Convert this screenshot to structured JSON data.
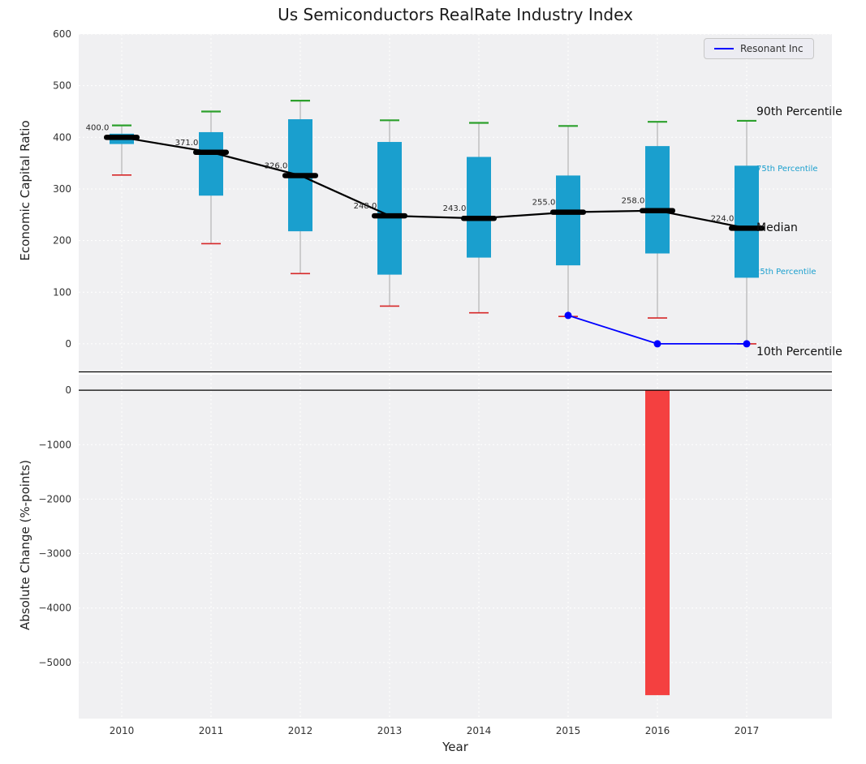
{
  "title": "Us Semiconductors RealRate Industry Index",
  "xlabel": "Year",
  "legend": {
    "label": "Resonant Inc"
  },
  "annotations": {
    "p90": "90th Percentile",
    "p75": "75th Percentile",
    "median": "Median",
    "p25": "25th Percentile",
    "p10": "10th Percentile"
  },
  "colors": {
    "axes_bg": "#f0f0f2",
    "grid": "#ffffff",
    "box": "#1a9fce",
    "whisker": "#a8a8a8",
    "p90_cap": "#2ca02c",
    "p10_cap": "#d62728",
    "median": "#000000",
    "resonant": "#0000ff",
    "neg_bar": "#f44040"
  },
  "chart_data": [
    {
      "type": "boxplot",
      "title": "Us Semiconductors RealRate Industry Index",
      "xlabel": "Year",
      "ylabel": "Economic Capital Ratio",
      "categories": [
        2010,
        2011,
        2012,
        2013,
        2014,
        2015,
        2016,
        2017
      ],
      "ylim": [
        -52,
        600
      ],
      "yticks": [
        0,
        100,
        200,
        300,
        400,
        500,
        600
      ],
      "grid": true,
      "legend_position": "upper right",
      "series": {
        "p90": [
          423,
          450,
          471,
          433,
          428,
          422,
          430,
          432
        ],
        "p75": [
          407,
          410,
          435,
          391,
          362,
          326,
          383,
          345
        ],
        "median": [
          400,
          371,
          326,
          248,
          243,
          255,
          258,
          224
        ],
        "p25": [
          387,
          287,
          218,
          134,
          167,
          152,
          175,
          128
        ],
        "p10": [
          327,
          194,
          136,
          73,
          60,
          53,
          50,
          0
        ]
      },
      "resonant_inc": {
        "name": "Resonant Inc",
        "x": [
          2015,
          2016,
          2017
        ],
        "y": [
          55,
          0,
          0
        ]
      }
    },
    {
      "type": "bar",
      "ylabel": "Absolute Change (%-points)",
      "categories": [
        2010,
        2011,
        2012,
        2013,
        2014,
        2015,
        2016,
        2017
      ],
      "values": [
        null,
        null,
        null,
        null,
        null,
        null,
        -5600,
        null
      ],
      "ylim": [
        -6030,
        285
      ],
      "yticks": [
        0,
        -1000,
        -2000,
        -3000,
        -4000,
        -5000
      ],
      "grid": true
    }
  ]
}
